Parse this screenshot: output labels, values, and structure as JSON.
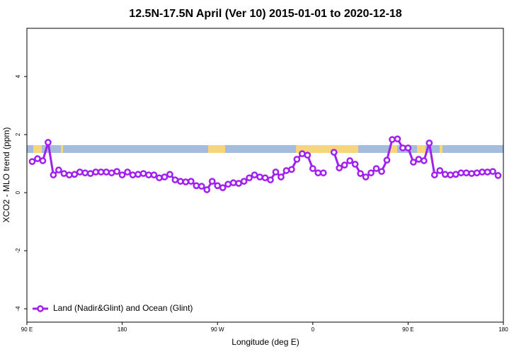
{
  "chart_data": {
    "type": "line",
    "title": "12.5N-17.5N April (Ver 10)   2015-01-01 to 2020-12-18",
    "x_label": "Longitude (deg E)",
    "y_label": "XCO2 - MLO trend (ppm)",
    "x": [
      95,
      100,
      105,
      110,
      115,
      120,
      125,
      130,
      135,
      140,
      145,
      150,
      155,
      160,
      165,
      170,
      175,
      180,
      185,
      190,
      195,
      200,
      205,
      210,
      215,
      220,
      225,
      230,
      235,
      240,
      245,
      250,
      255,
      260,
      265,
      270,
      275,
      280,
      285,
      290,
      295,
      300,
      305,
      310,
      315,
      320,
      325,
      330,
      335,
      340,
      345,
      350,
      355,
      360,
      365,
      370,
      375,
      380,
      385,
      390,
      395,
      400,
      405,
      410,
      415,
      420,
      425,
      430,
      435,
      440,
      445,
      450,
      455,
      460,
      465,
      470,
      475,
      480,
      485,
      490,
      495,
      500,
      505,
      510,
      515,
      520,
      525,
      530,
      535
    ],
    "series": [
      {
        "name": "Land (Nadir&Glint) and Ocean (Glint)",
        "color": "#a020f0",
        "values": [
          1.07,
          1.17,
          1.1,
          1.73,
          0.61,
          0.78,
          0.66,
          0.61,
          0.63,
          0.71,
          0.68,
          0.66,
          0.71,
          0.71,
          0.71,
          0.68,
          0.73,
          0.61,
          0.71,
          0.61,
          0.63,
          0.66,
          0.61,
          0.61,
          0.51,
          0.54,
          0.63,
          0.44,
          0.39,
          0.37,
          0.39,
          0.24,
          0.22,
          0.1,
          0.39,
          0.24,
          0.17,
          0.29,
          0.34,
          0.32,
          0.39,
          0.51,
          0.61,
          0.54,
          0.51,
          0.44,
          0.71,
          0.54,
          0.76,
          0.8,
          1.15,
          1.34,
          1.29,
          0.83,
          0.68,
          0.68,
          null,
          1.39,
          0.85,
          0.95,
          1.1,
          0.98,
          0.66,
          0.54,
          0.68,
          0.83,
          0.73,
          1.12,
          1.83,
          1.85,
          1.54,
          1.54,
          1.05,
          1.15,
          1.1,
          1.71,
          0.61,
          0.76,
          0.63,
          0.61,
          0.63,
          0.68,
          0.68,
          0.66,
          0.68,
          0.71,
          0.71,
          0.73,
          0.59
        ]
      }
    ],
    "xlim": [
      90,
      540
    ],
    "xticks": [
      {
        "value": 90,
        "label": "90 E"
      },
      180,
      {
        "value": 270,
        "label": "90 W"
      },
      {
        "value": 360,
        "label": "0"
      },
      {
        "value": 450,
        "label": "90 E"
      },
      {
        "value": 540,
        "label": "180"
      }
    ],
    "ylim": [
      -4.46,
      5.66
    ],
    "yticks": [
      -4,
      -2,
      0,
      2,
      4
    ],
    "legend": "bottom-left"
  }
}
